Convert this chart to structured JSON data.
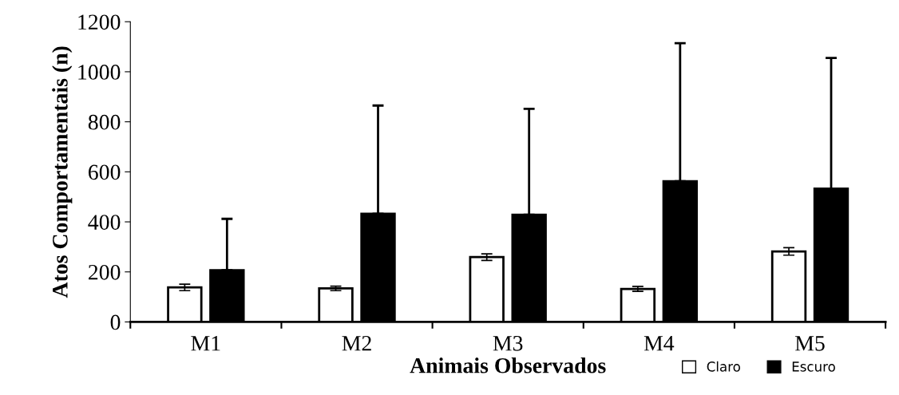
{
  "chart_data": {
    "type": "bar",
    "xlabel": "Animais Observados",
    "ylabel": "Atos Comportamentais (n)",
    "categories": [
      "M1",
      "M2",
      "M3",
      "M4",
      "M5"
    ],
    "series": [
      {
        "name": "Claro",
        "color": "#ffffff",
        "values": [
          138,
          134,
          259,
          132,
          282
        ],
        "errors": [
          13,
          9,
          13,
          10,
          15
        ]
      },
      {
        "name": "Escuro",
        "color": "#000000",
        "values": [
          207,
          432,
          428,
          562,
          533
        ],
        "errors": [
          [
            207,
            412
          ],
          [
            432,
            865
          ],
          [
            428,
            852
          ],
          [
            562,
            1114
          ],
          [
            533,
            1055
          ]
        ]
      }
    ],
    "ylim": [
      0,
      1200
    ],
    "yticks": [
      0,
      200,
      400,
      600,
      800,
      1000,
      1200
    ],
    "grid": false,
    "legend": "bottom right"
  }
}
